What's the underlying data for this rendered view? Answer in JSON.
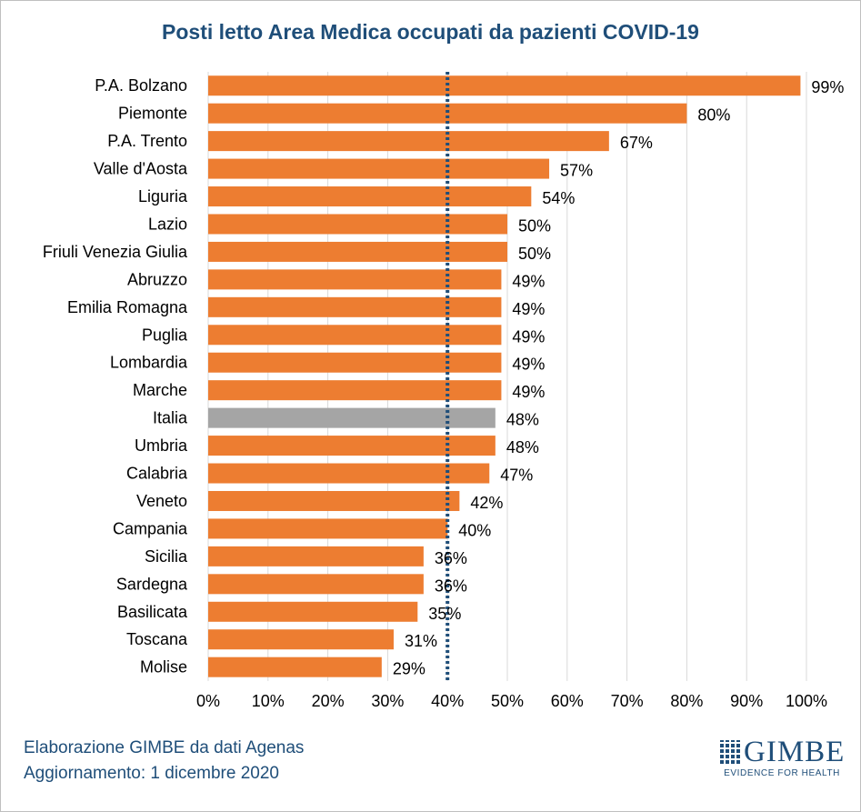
{
  "title": "Posti letto Area Medica occupati da pazienti COVID-19",
  "footer": {
    "line1": "Elaborazione GIMBE da dati Agenas",
    "line2": "Aggiornamento: 1 dicembre 2020"
  },
  "logo": {
    "name": "GIMBE",
    "tagline": "EVIDENCE FOR HEALTH"
  },
  "colors": {
    "bar": "#ed7d31",
    "highlight": "#a5a5a5",
    "threshold": "#1f4e79",
    "title": "#1f4e79"
  },
  "chart_data": {
    "type": "bar",
    "orientation": "horizontal",
    "categories": [
      "P.A. Bolzano",
      "Piemonte",
      "P.A. Trento",
      "Valle d'Aosta",
      "Liguria",
      "Lazio",
      "Friuli Venezia Giulia",
      "Abruzzo",
      "Emilia Romagna",
      "Puglia",
      "Lombardia",
      "Marche",
      "Italia",
      "Umbria",
      "Calabria",
      "Veneto",
      "Campania",
      "Sicilia",
      "Sardegna",
      "Basilicata",
      "Toscana",
      "Molise"
    ],
    "values": [
      99,
      80,
      67,
      57,
      54,
      50,
      50,
      49,
      49,
      49,
      49,
      49,
      48,
      48,
      47,
      42,
      40,
      36,
      36,
      35,
      31,
      29
    ],
    "value_labels": [
      "99%",
      "80%",
      "67%",
      "57%",
      "54%",
      "50%",
      "50%",
      "49%",
      "49%",
      "49%",
      "49%",
      "49%",
      "48%",
      "48%",
      "47%",
      "42%",
      "40%",
      "36%",
      "36%",
      "35%",
      "31%",
      "29%"
    ],
    "highlight_category": "Italia",
    "threshold": 40,
    "xlim": [
      0,
      100
    ],
    "xticks": [
      0,
      10,
      20,
      30,
      40,
      50,
      60,
      70,
      80,
      90,
      100
    ],
    "xtick_labels": [
      "0%",
      "10%",
      "20%",
      "30%",
      "40%",
      "50%",
      "60%",
      "70%",
      "80%",
      "90%",
      "100%"
    ],
    "grid": true,
    "legend": "none"
  }
}
